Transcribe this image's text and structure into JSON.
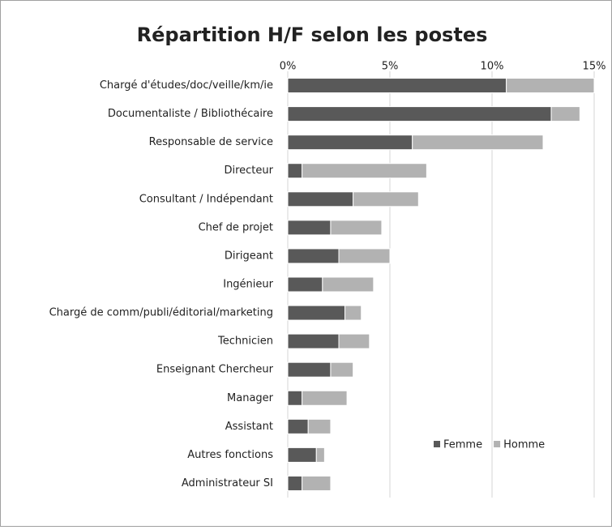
{
  "chart_data": {
    "type": "stacked-bar-horizontal",
    "title": "Répartition H/F selon les postes",
    "categories": [
      "Chargé d'études/doc/veille/km/ie",
      "Documentaliste / Bibliothécaire",
      "Responsable de service",
      "Directeur",
      "Consultant / Indépendant",
      "Chef de projet",
      "Dirigeant",
      "Ingénieur",
      "Chargé de comm/publi/éditorial/marketing",
      "Technicien",
      "Enseignant Chercheur",
      "Manager",
      "Assistant",
      "Autres fonctions",
      "Administrateur SI"
    ],
    "series": [
      {
        "name": "Femme",
        "color": "#595959",
        "values": [
          10.7,
          12.9,
          6.1,
          0.7,
          3.2,
          2.1,
          2.5,
          1.7,
          2.8,
          2.5,
          2.1,
          0.7,
          1.0,
          1.4,
          0.7
        ]
      },
      {
        "name": "Homme",
        "color": "#b2b2b2",
        "values": [
          4.3,
          1.4,
          6.4,
          6.1,
          3.2,
          2.5,
          2.5,
          2.5,
          0.8,
          1.5,
          1.1,
          2.2,
          1.1,
          0.4,
          1.4
        ]
      }
    ],
    "xlim": [
      0,
      15
    ],
    "xticks": [
      {
        "value": 0,
        "label": "0%"
      },
      {
        "value": 5,
        "label": "5%"
      },
      {
        "value": 10,
        "label": "10%"
      },
      {
        "value": 15,
        "label": "15%"
      }
    ],
    "grid": true
  }
}
